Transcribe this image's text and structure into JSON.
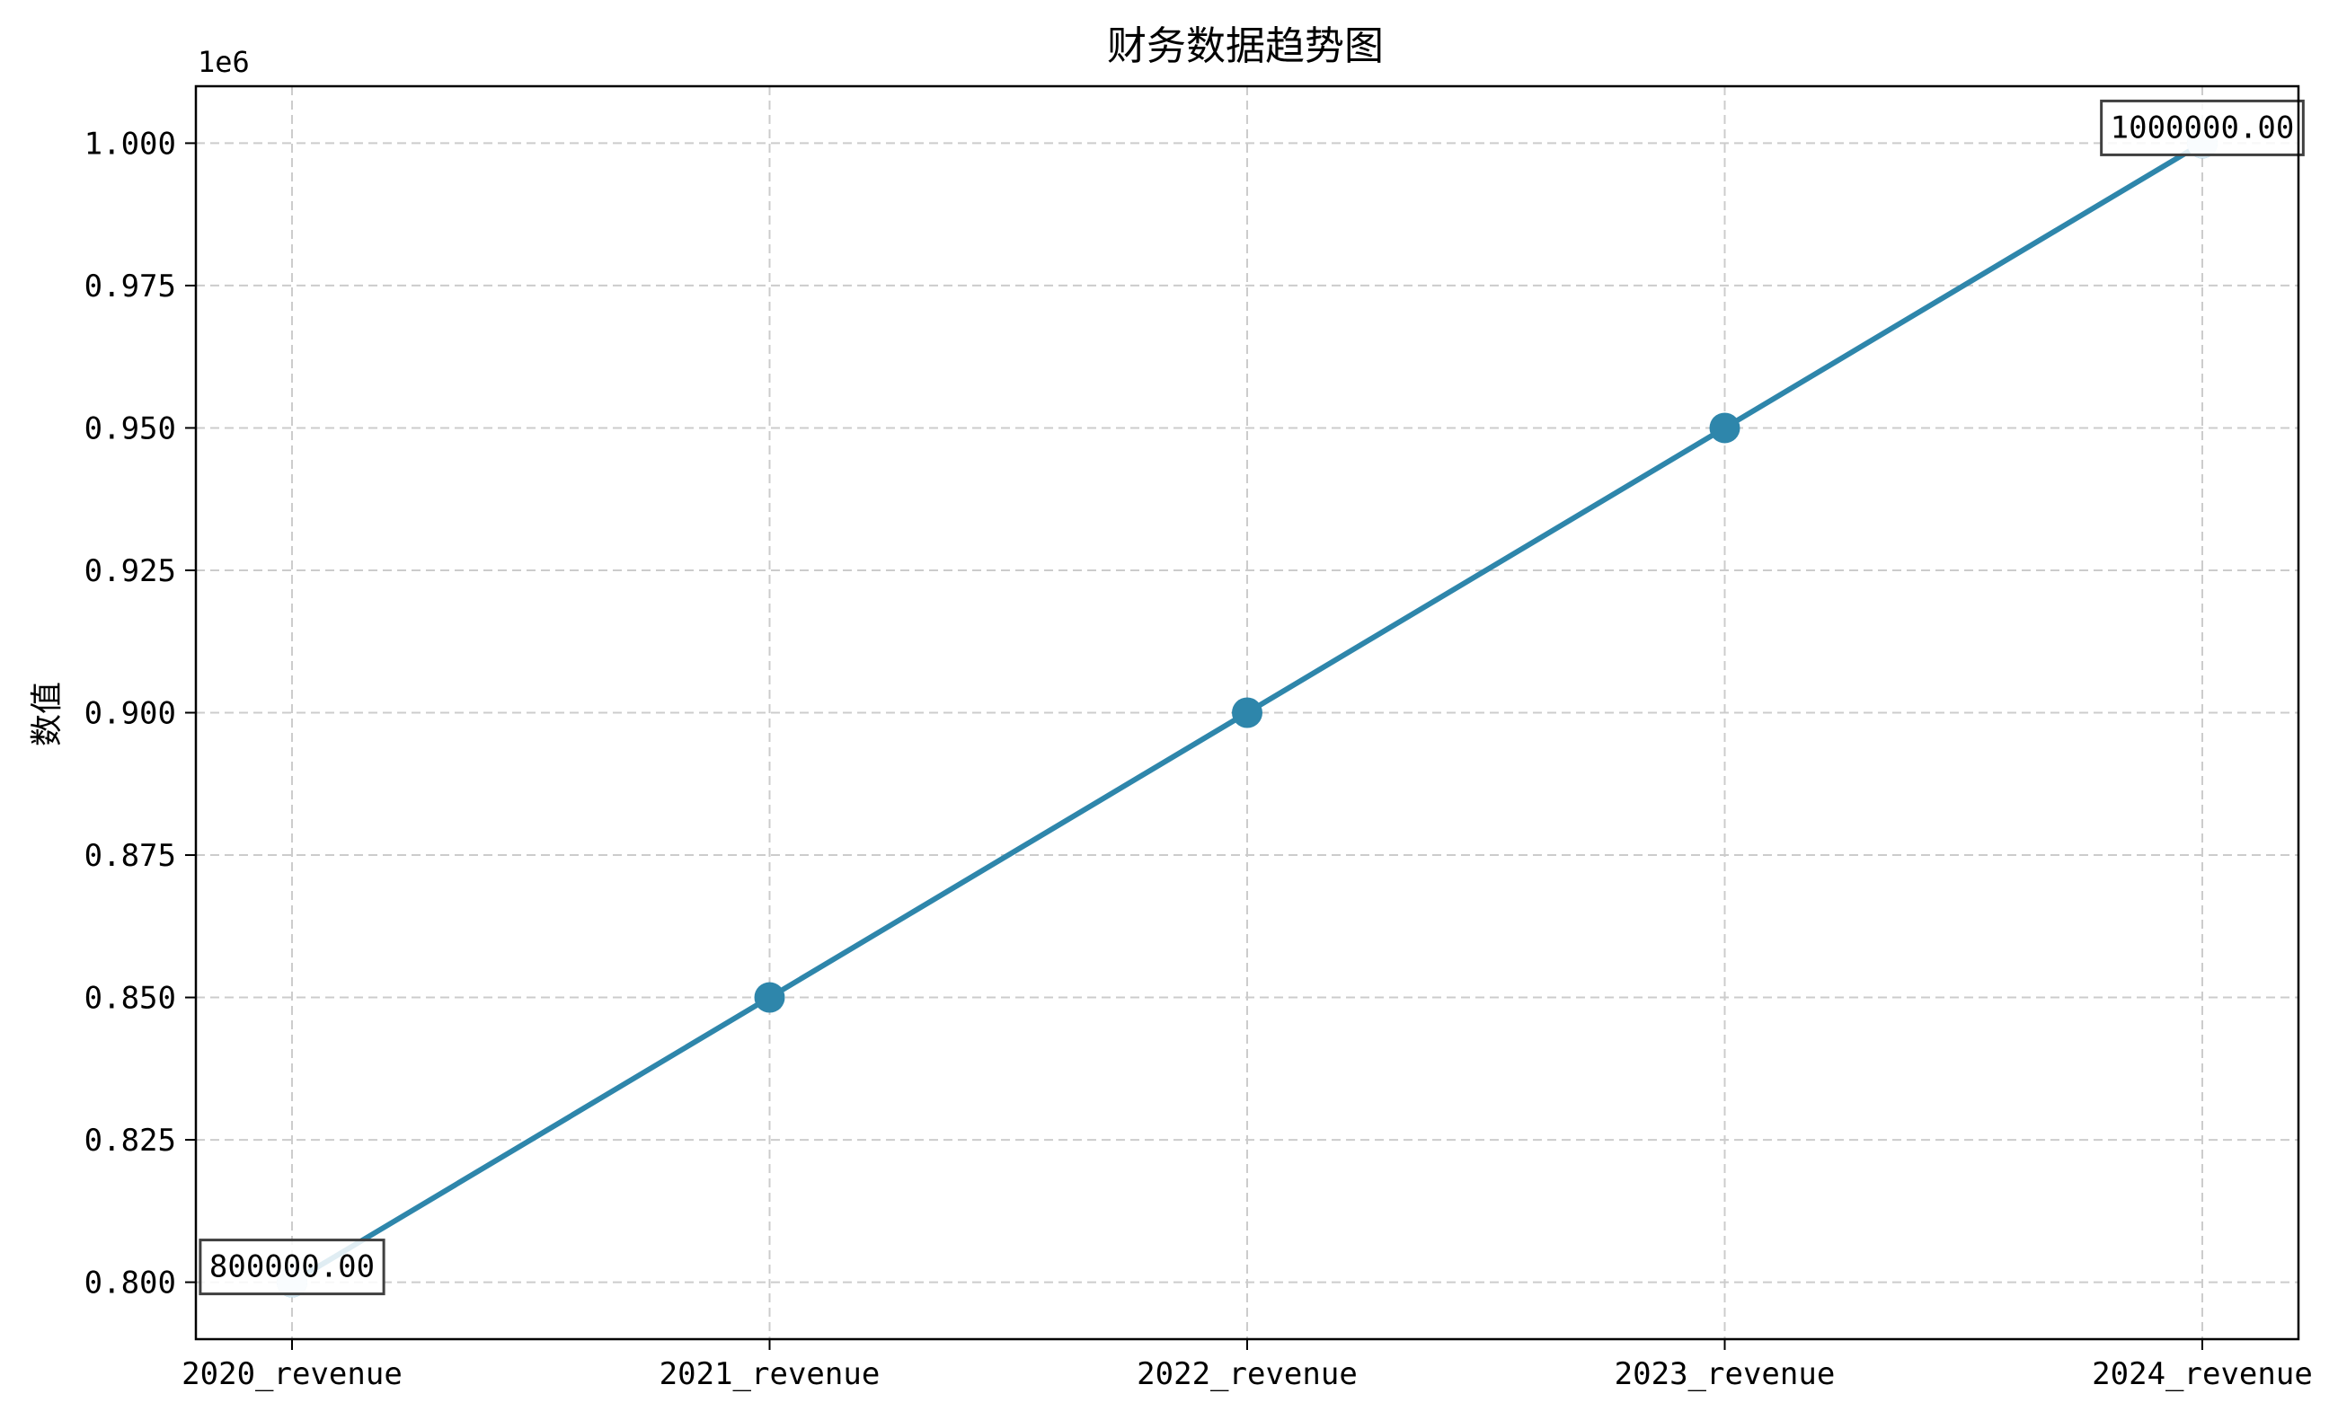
{
  "chart_data": {
    "type": "line",
    "title": "财务数据趋势图",
    "xlabel": "",
    "ylabel": "数值",
    "y_offset_text": "1e6",
    "y_scale_factor": 1000000,
    "categories": [
      "2020_revenue",
      "2021_revenue",
      "2022_revenue",
      "2023_revenue",
      "2024_revenue"
    ],
    "series": [
      {
        "values": [
          800000,
          850000,
          900000,
          950000,
          1000000
        ],
        "color": "#2e86ab"
      }
    ],
    "yticks": [
      0.8,
      0.825,
      0.85,
      0.875,
      0.9,
      0.925,
      0.95,
      0.975,
      1.0
    ],
    "ytick_labels": [
      "0.800",
      "0.825",
      "0.850",
      "0.875",
      "0.900",
      "0.925",
      "0.950",
      "0.975",
      "1.000"
    ],
    "ylim": [
      790000,
      1010000
    ],
    "grid": true,
    "annotations": [
      {
        "category": "2020_revenue",
        "value": 800000,
        "text": "800000.00"
      },
      {
        "category": "2024_revenue",
        "value": 1000000,
        "text": "1000000.00"
      }
    ]
  }
}
